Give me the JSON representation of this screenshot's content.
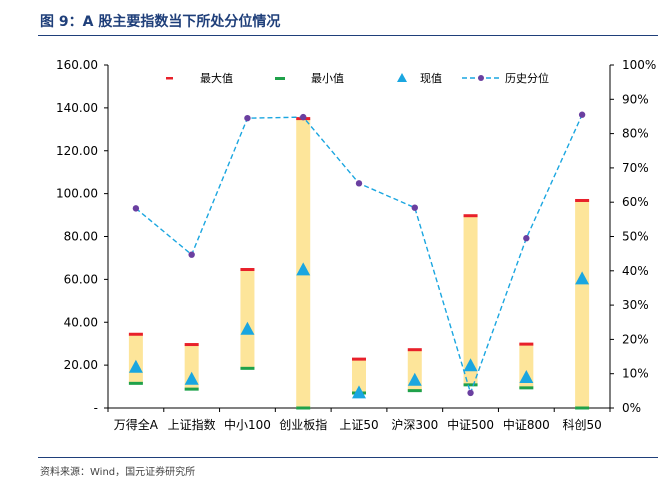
{
  "title": "图 9：A 股主要指数当下所处分位情况",
  "source": "资料来源：Wind，国元证券研究所",
  "colors": {
    "bar": "#fde59a",
    "max_marker": "#e8202a",
    "min_marker": "#1fa14a",
    "current_marker": "#1aa6e0",
    "percentile_line": "#1aa6e0",
    "percentile_dot": "#6a3fa0",
    "axis": "#000000",
    "title": "#1f3f7a"
  },
  "chart_data": {
    "type": "bar",
    "categories": [
      "万得全A",
      "上证指数",
      "中小100",
      "创业板指",
      "上证50",
      "沪深300",
      "中证500",
      "中证800",
      "科创50"
    ],
    "y_left": {
      "range": [
        0,
        160
      ],
      "tick_values": [
        0,
        20,
        40,
        60,
        80,
        100,
        120,
        140,
        160
      ],
      "tick_labels": [
        "-",
        "20.00",
        "40.00",
        "60.00",
        "80.00",
        "100.00",
        "120.00",
        "140.00",
        "160.00"
      ]
    },
    "y_right": {
      "range": [
        0,
        1
      ],
      "tick_values": [
        0,
        0.1,
        0.2,
        0.3,
        0.4,
        0.5,
        0.6,
        0.7,
        0.8,
        0.9,
        1.0
      ],
      "tick_labels": [
        "0%",
        "10%",
        "20%",
        "30%",
        "40%",
        "50%",
        "60%",
        "70%",
        "80%",
        "90%",
        "100%"
      ]
    },
    "grid": false,
    "legend_position": "top",
    "series": [
      {
        "name": "最大值",
        "kind": "max",
        "values": [
          34.4,
          29.6,
          64.6,
          135.0,
          22.8,
          27.2,
          89.7,
          29.8,
          96.8
        ]
      },
      {
        "name": "最小值",
        "kind": "min",
        "values": [
          11.5,
          8.8,
          18.5,
          0.0,
          7.0,
          8.1,
          10.8,
          9.4,
          0.0
        ]
      },
      {
        "name": "现值",
        "kind": "current",
        "values": [
          18.8,
          13.2,
          36.5,
          64.2,
          6.8,
          12.7,
          19.5,
          14.0,
          60.0
        ]
      },
      {
        "name": "历史分位",
        "kind": "percentile",
        "axis": "right",
        "values": [
          0.582,
          0.447,
          0.845,
          0.848,
          0.655,
          0.584,
          0.044,
          0.495,
          0.855
        ]
      }
    ]
  }
}
